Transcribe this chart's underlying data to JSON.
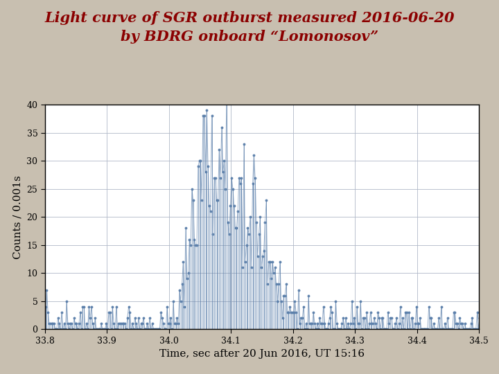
{
  "title_line1": "Light curve of SGR outburst measured 2016-06-20",
  "title_line2": "by BDRG onboard “Lomonosov”",
  "xlabel": "Time, sec after 20 Jun 2016, UT 15:16",
  "ylabel": "Counts / 0.001s",
  "xlim": [
    33.8,
    34.5
  ],
  "ylim": [
    0,
    40
  ],
  "xticks": [
    33.8,
    33.9,
    34.0,
    34.1,
    34.2,
    34.3,
    34.4,
    34.5
  ],
  "yticks": [
    0,
    5,
    10,
    15,
    20,
    25,
    30,
    35,
    40
  ],
  "line_color": "#5b7faa",
  "title_color": "#8b0000",
  "background_color": "#c8bfb0",
  "plot_bg_color": "#ffffff",
  "grid_color": "#b0b8c8",
  "title_fontsize": 15,
  "label_fontsize": 11,
  "tick_fontsize": 9,
  "burst_start": 34.01,
  "burst_rise_end": 34.05,
  "burst_peak": 27.0,
  "burst_plateau_end": 34.12,
  "burst_drop_start": 34.18,
  "burst_end": 34.23,
  "background_level": 1.2
}
